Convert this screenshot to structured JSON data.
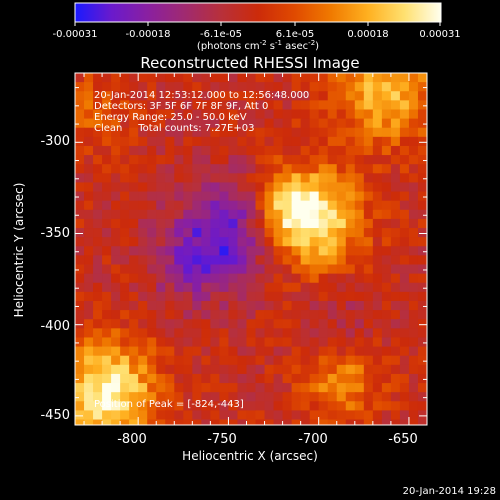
{
  "colorbar": {
    "tick_labels": [
      "-0.00031",
      "-0.00018",
      "-6.1e-05",
      "6.1e-05",
      "0.00018",
      "0.00031"
    ],
    "unit_label": "(photons cm",
    "unit_exp1": "-2",
    "unit_mid": " s",
    "unit_exp2": "-1",
    "unit_tail": " asec",
    "unit_exp3": "-2",
    "unit_close": ")",
    "colormap": [
      "#1a1aff",
      "#6a1acc",
      "#8a20a0",
      "#a02a70",
      "#b8303a",
      "#cc2b0a",
      "#e04a00",
      "#f07a00",
      "#ffb020",
      "#ffe070",
      "#ffffee"
    ]
  },
  "plot": {
    "title": "Reconstructed RHESSI Image",
    "xlabel": "Heliocentric X (arcsec)",
    "ylabel": "Heliocentric Y (arcsec)",
    "info_lines": [
      "20-Jan-2014 12:53:12.000 to 12:56:48.000",
      "Detectors: 3F 5F 6F 7F 8F 9F, Att 0",
      "Energy Range: 25.0 - 50.0 keV",
      "Clean     Total counts: 7.27E+03"
    ],
    "peak_label": "Position of Peak = [-824,-443]",
    "timestamp": "20-Jan-2014 19:28"
  },
  "chart_data": {
    "type": "heatmap",
    "title": "Reconstructed RHESSI Image",
    "xlabel": "Heliocentric X (arcsec)",
    "ylabel": "Heliocentric Y (arcsec)",
    "xlim": [
      -835,
      -640
    ],
    "ylim": [
      -455,
      -262
    ],
    "x_ticks": [
      -800,
      -750,
      -700,
      -650
    ],
    "x_tick_labels": [
      "-800",
      "-750",
      "-700",
      "-650"
    ],
    "y_ticks": [
      -450,
      -400,
      -350,
      -300
    ],
    "y_tick_labels": [
      "-450",
      "-400",
      "-350",
      "-300"
    ],
    "colorbar_range": [
      -0.00031,
      0.00031
    ],
    "peak": [
      -824,
      -443
    ],
    "sources": [
      {
        "x": -750,
        "y": -345,
        "value": -0.00024
      },
      {
        "x": -705,
        "y": -340,
        "value": 0.00026
      },
      {
        "x": -720,
        "y": -335,
        "value": 0.00018
      },
      {
        "x": -820,
        "y": -435,
        "value": 0.00031
      },
      {
        "x": -665,
        "y": -270,
        "value": 0.00022
      },
      {
        "x": -690,
        "y": -430,
        "value": 0.00016
      },
      {
        "x": -830,
        "y": -280,
        "value": 0.0001
      },
      {
        "x": -775,
        "y": -365,
        "value": -0.00012
      },
      {
        "x": -690,
        "y": -395,
        "value": -6e-05
      }
    ]
  }
}
